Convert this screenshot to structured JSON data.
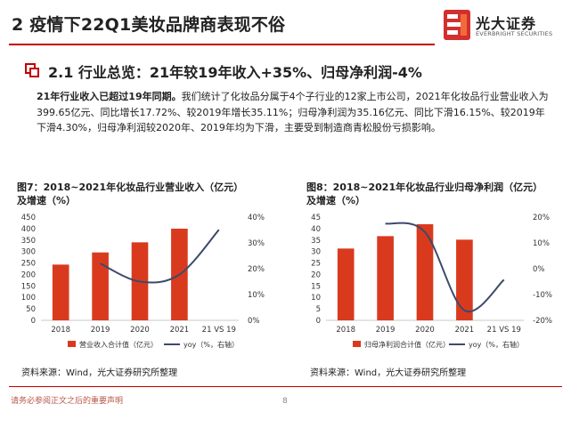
{
  "header": {
    "title": "2 疫情下22Q1美妆品牌商表现不俗",
    "logo_cn": "光大证券",
    "logo_en": "EVERBRIGHT SECURITIES",
    "accent_color": "#c00000"
  },
  "section": {
    "title": "2.1 行业总览：21年较19年收入+35%、归母净利润-4%"
  },
  "body": {
    "lead": "21年行业收入已超过19年同期。",
    "text": "我们统计了化妆品分属于4个子行业的12家上市公司，2021年化妆品行业营业收入为399.65亿元、同比增长17.72%、较2019年增长35.11%；归母净利润为35.16亿元、同比下滑16.15%、较2019年下滑4.30%，归母净利润较2020年、2019年均为下滑，主要受到制造商青松股份亏损影响。"
  },
  "figures": [
    {
      "title_line1": "图7：2018~2021年化妆品行业营业收入（亿元）",
      "title_line2": "及增速（%）",
      "source": "资料来源：Wind，光大证券研究所整理"
    },
    {
      "title_line1": "图8：2018~2021年化妆品行业归母净利润（亿元）",
      "title_line2": "及增速（%）",
      "source": "资料来源：Wind，光大证券研究所整理"
    }
  ],
  "chart_data": [
    {
      "type": "bar",
      "categories": [
        "2018",
        "2019",
        "2020",
        "2021",
        "21 VS 19"
      ],
      "series": [
        {
          "name": "营业收入合计值（亿元）",
          "type": "bar",
          "axis": "left",
          "color": "#d93a1e",
          "values": [
            243,
            296,
            340,
            399.65,
            null
          ]
        },
        {
          "name": "yoy（%，右轴）",
          "type": "line",
          "axis": "right",
          "color": "#3d4a6b",
          "values": [
            null,
            22,
            15,
            17.72,
            35.11
          ]
        }
      ],
      "y_left": {
        "min": 0,
        "max": 450,
        "ticks": [
          "0",
          "50",
          "100",
          "150",
          "200",
          "250",
          "300",
          "350",
          "400",
          "450"
        ]
      },
      "y_right": {
        "min": 0,
        "max": 40,
        "ticks": [
          "0%",
          "10%",
          "20%",
          "30%",
          "40%"
        ]
      },
      "legend_position": "bottom",
      "grid": false
    },
    {
      "type": "bar",
      "categories": [
        "2018",
        "2019",
        "2020",
        "2021",
        "21 VS 19"
      ],
      "series": [
        {
          "name": "归母净利润合计值（亿元）",
          "type": "bar",
          "axis": "left",
          "color": "#d93a1e",
          "values": [
            31.3,
            36.7,
            41.9,
            35.16,
            null
          ]
        },
        {
          "name": "yoy（%，右轴）",
          "type": "line",
          "axis": "right",
          "color": "#3d4a6b",
          "values": [
            null,
            17.5,
            14.2,
            -16.15,
            -4.3
          ]
        }
      ],
      "y_left": {
        "min": 0,
        "max": 45,
        "ticks": [
          "0",
          "5",
          "10",
          "15",
          "20",
          "25",
          "30",
          "35",
          "40",
          "45"
        ]
      },
      "y_right": {
        "min": -20,
        "max": 20,
        "ticks": [
          "-20%",
          "-10%",
          "0%",
          "10%",
          "20%"
        ]
      },
      "legend_position": "bottom",
      "grid": false
    }
  ],
  "footer": {
    "disclaimer": "请务必参阅正文之后的重要声明",
    "page": "8"
  }
}
